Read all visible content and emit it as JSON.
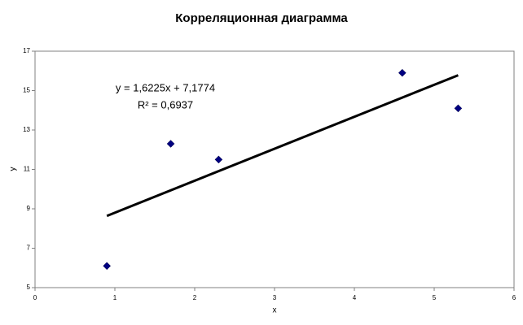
{
  "chart_data": {
    "type": "scatter",
    "title": "Корреляционная диаграмма",
    "x_label": "x",
    "y_label": "y",
    "series": [
      {
        "x": [
          0.9,
          1.7,
          2.3,
          4.6,
          5.3
        ],
        "values": [
          6.1,
          12.3,
          11.5,
          15.9,
          14.1
        ],
        "color": "#000080",
        "marker": "diamond"
      }
    ],
    "trendline": {
      "x": [
        0.9,
        5.3
      ],
      "values": [
        8.64,
        15.78
      ],
      "color": "#000000"
    },
    "annotations": [
      "y = 1,6225x + 7,1774",
      "R² = 0,6937"
    ],
    "xlim": [
      0,
      6
    ],
    "xticks": [
      0,
      1,
      2,
      3,
      4,
      5,
      6
    ],
    "ylim": [
      5,
      17
    ],
    "yticks": [
      5,
      7,
      9,
      11,
      13,
      15,
      17
    ],
    "grid": false
  }
}
